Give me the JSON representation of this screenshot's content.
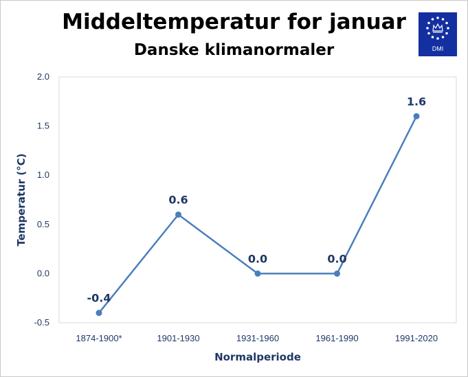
{
  "chart_data": {
    "type": "line",
    "title": "Middeltemperatur for januar",
    "subtitle": "Danske klimanormaler",
    "xlabel": "Normalperiode",
    "ylabel": "Temperatur (°C)",
    "categories": [
      "1874-1900*",
      "1901-1930",
      "1931-1960",
      "1961-1990",
      "1991-2020"
    ],
    "series": [
      {
        "values": [
          -0.4,
          0.6,
          0.0,
          0.0,
          1.6
        ]
      }
    ],
    "data_labels": [
      "-0.4",
      "0.6",
      "0.0",
      "0.0",
      "1.6"
    ],
    "ylim": [
      -0.5,
      2.0
    ],
    "yticks": [
      -0.5,
      0.0,
      0.5,
      1.0,
      1.5,
      2.0
    ],
    "ytick_labels": [
      "-0.5",
      "0.0",
      "0.5",
      "1.0",
      "1.5",
      "2.0"
    ],
    "grid": false,
    "legend": "none",
    "colors": {
      "line": "#4a7ebb",
      "text": "#1f3864",
      "plot_border": "#d9d9d9"
    }
  },
  "logo": {
    "text": "DMI",
    "background": "#142fa0"
  }
}
